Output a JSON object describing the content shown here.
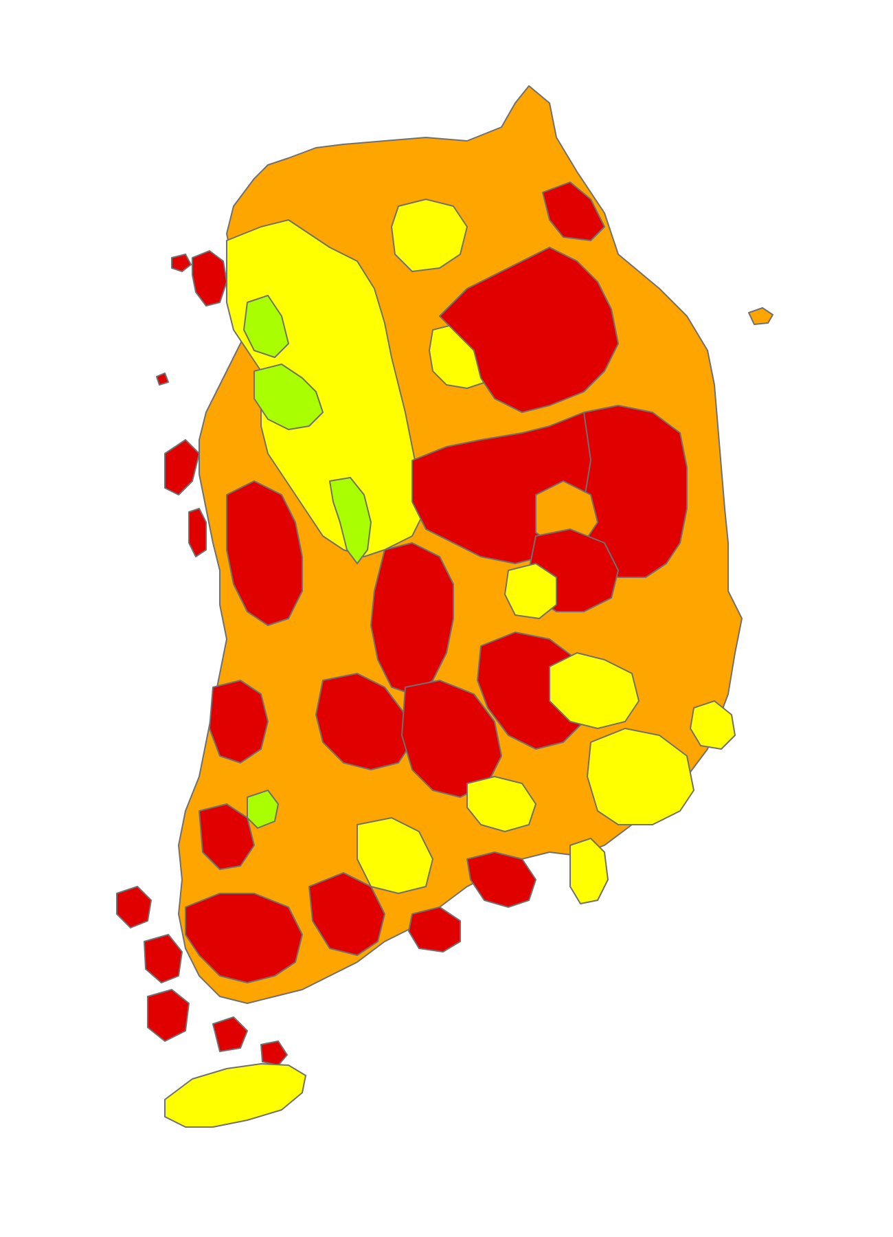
{
  "map": {
    "type": "choropleth",
    "title": "",
    "legend": [],
    "classes": {
      "red": "#e10000",
      "orange": "#ffa500",
      "yellow": "#ffff00",
      "green": "#a9ff00"
    },
    "border_color": "#707070",
    "background": "#ffffff"
  }
}
